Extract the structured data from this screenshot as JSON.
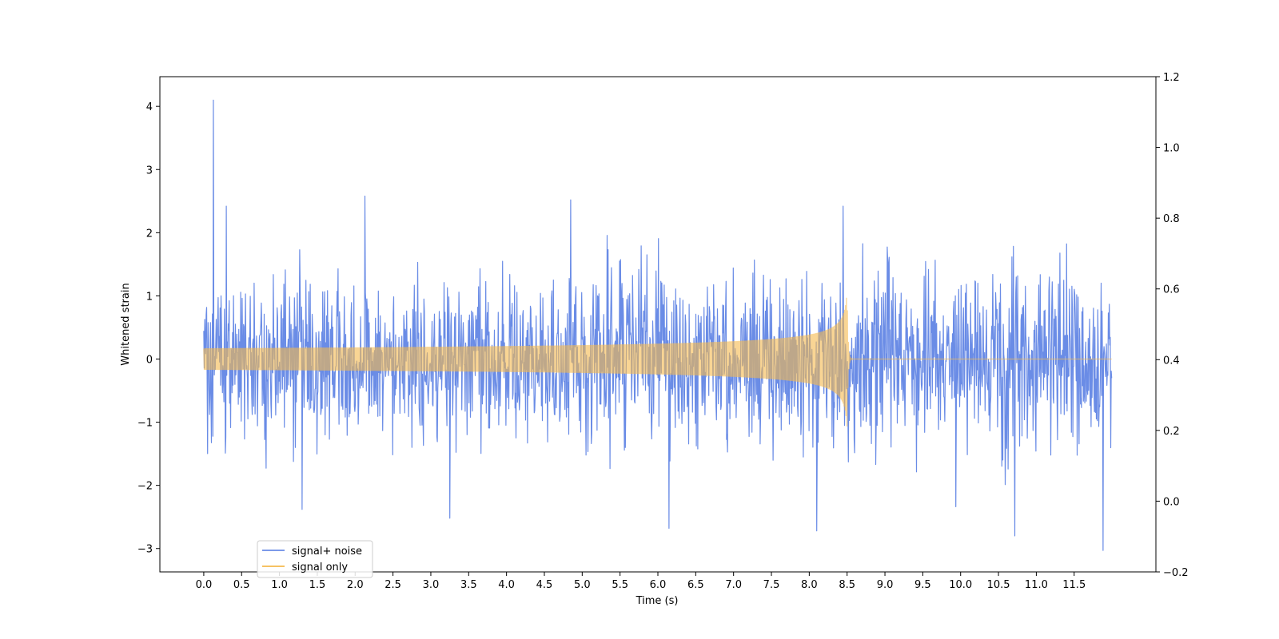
{
  "chart_data": {
    "type": "line",
    "title": "",
    "xlabel": "Time (s)",
    "ylabel": "Whitened strain",
    "xlim": [
      -0.58,
      12.58
    ],
    "ylim": [
      -3.37,
      4.47
    ],
    "ylim_right": [
      -0.2,
      1.2
    ],
    "x_ticks": [
      0.0,
      0.5,
      1.0,
      1.5,
      2.0,
      2.5,
      3.0,
      3.5,
      4.0,
      4.5,
      5.0,
      5.5,
      6.0,
      6.5,
      7.0,
      7.5,
      8.0,
      8.5,
      9.0,
      9.5,
      10.0,
      10.5,
      11.0,
      11.5
    ],
    "x_tick_labels": [
      "0.0",
      "0.5",
      "1.0",
      "1.5",
      "2.0",
      "2.5",
      "3.0",
      "3.5",
      "4.0",
      "4.5",
      "5.0",
      "5.5",
      "6.0",
      "6.5",
      "7.0",
      "7.5",
      "8.0",
      "8.5",
      "9.0",
      "9.5",
      "10.0",
      "10.5",
      "11.0",
      "11.5"
    ],
    "y_ticks": [
      -3,
      -2,
      -1,
      0,
      1,
      2,
      3,
      4
    ],
    "y_tick_labels": [
      "−3",
      "−2",
      "−1",
      "0",
      "1",
      "2",
      "3",
      "4"
    ],
    "y_ticks_right": [
      -0.2,
      0.0,
      0.2,
      0.4,
      0.6,
      0.8,
      1.0,
      1.2
    ],
    "y_tick_labels_right": [
      "−0.2",
      "0.0",
      "0.2",
      "0.4",
      "0.6",
      "0.8",
      "1.0",
      "1.2"
    ],
    "grid": false,
    "legend_position": "lower-left",
    "series": [
      {
        "name": "signal+ noise",
        "color": "#6a8ce6",
        "x_range": [
          0.0,
          12.0
        ],
        "noise_sigma": 0.65,
        "peaks": [
          {
            "x": 0.13,
            "y": 4.1
          },
          {
            "x": 0.3,
            "y": 2.42
          },
          {
            "x": 2.13,
            "y": 2.58
          },
          {
            "x": 4.85,
            "y": 2.52
          },
          {
            "x": 8.45,
            "y": 2.42
          },
          {
            "x": 1.3,
            "y": -2.38
          },
          {
            "x": 3.25,
            "y": -2.52
          },
          {
            "x": 6.15,
            "y": -2.68
          },
          {
            "x": 8.1,
            "y": -2.72
          },
          {
            "x": 10.72,
            "y": -2.8
          },
          {
            "x": 11.88,
            "y": -3.03
          }
        ]
      },
      {
        "name": "signal only",
        "color": "#f5b94d",
        "x_range": [
          0.0,
          12.0
        ],
        "merger_time": 8.5,
        "peak_amplitude": 1.1
      }
    ]
  }
}
